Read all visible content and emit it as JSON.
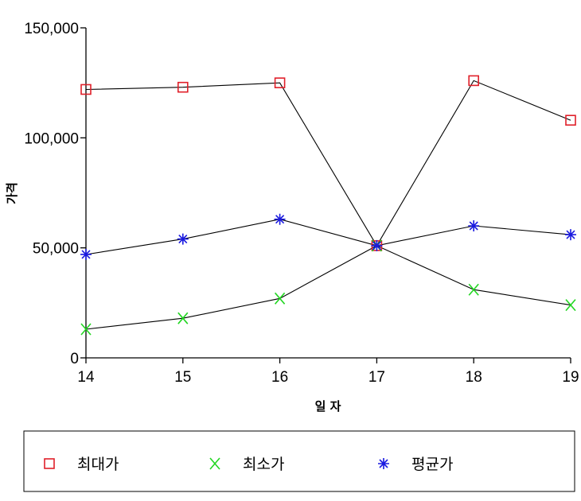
{
  "chart_data": {
    "type": "line",
    "xlabel": "일 자",
    "ylabel": "가격",
    "x": [
      14,
      15,
      16,
      17,
      18,
      19
    ],
    "x_tick_labels": [
      "14",
      "15",
      "16",
      "17",
      "18",
      "19"
    ],
    "ylim": [
      0,
      150000
    ],
    "y_ticks": [
      0,
      50000,
      100000,
      150000
    ],
    "y_tick_labels": [
      "0",
      "50,000",
      "100,000",
      "150,000"
    ],
    "grid": false,
    "legend_position": "bottom",
    "series": [
      {
        "name": "최대가",
        "values": [
          122000,
          123000,
          125000,
          51000,
          126000,
          108000
        ],
        "color": "#e0202a",
        "marker": "square"
      },
      {
        "name": "최소가",
        "values": [
          13000,
          18000,
          27000,
          51000,
          31000,
          24000
        ],
        "color": "#22d622",
        "marker": "x"
      },
      {
        "name": "평균가",
        "values": [
          47000,
          54000,
          63000,
          51000,
          60000,
          56000
        ],
        "color": "#1a1ae0",
        "marker": "star"
      }
    ]
  }
}
